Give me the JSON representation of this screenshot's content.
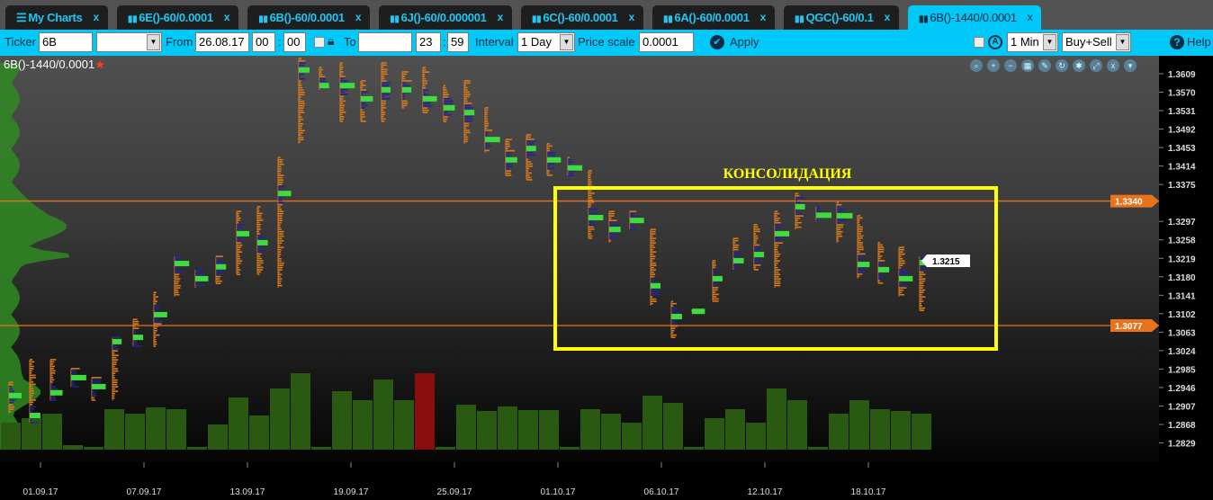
{
  "tabs": [
    {
      "label": "My Charts",
      "icon": "list-icon"
    },
    {
      "label": "6E()-60/0.0001",
      "icon": "bar-chart-icon"
    },
    {
      "label": "6B()-60/0.0001",
      "icon": "bar-chart-icon"
    },
    {
      "label": "6J()-60/0.000001",
      "icon": "bar-chart-icon"
    },
    {
      "label": "6C()-60/0.0001",
      "icon": "bar-chart-icon"
    },
    {
      "label": "6A()-60/0.0001",
      "icon": "bar-chart-icon"
    },
    {
      "label": "QGC()-60/0.1",
      "icon": "bar-chart-icon"
    },
    {
      "label": "6B()-1440/0.0001",
      "icon": "bar-chart-icon",
      "active": true
    }
  ],
  "tab_close": "x",
  "toolbar": {
    "ticker_label": "Ticker",
    "ticker_value": "6B",
    "ticker_select": "",
    "from_label": "From",
    "from_date": "26.08.17",
    "from_hour": "00",
    "from_min": "00",
    "to_label": "To",
    "to_date": "",
    "to_hour": "23",
    "to_min": "59",
    "colon": ":",
    "interval_label": "Interval",
    "interval_value": "1 Day",
    "price_scale_label": "Price scale",
    "price_scale_value": "0.0001",
    "apply_label": "Apply",
    "timeframe_value": "1 Min",
    "side_value": "Buy+Sell",
    "help_label": "Help"
  },
  "chart": {
    "title": "6B()-1440/0.0001",
    "annotation": "КОНСОЛИДАЦИЯ",
    "price_labels": [
      "1.3609",
      "1.3570",
      "1.3531",
      "1.3492",
      "1.3453",
      "1.3414",
      "1.3375",
      "1.3297",
      "1.3258",
      "1.3219",
      "1.3180",
      "1.3141",
      "1.3102",
      "1.3063",
      "1.3024",
      "1.2985",
      "1.2946",
      "1.2907",
      "1.2868",
      "1.2829"
    ],
    "level_high": "1.3340",
    "level_low": "1.3077",
    "last_price": "1.3215",
    "date_labels": [
      "01.09.17",
      "07.09.17",
      "13.09.17",
      "19.09.17",
      "25.09.17",
      "01.10.17",
      "06.10.17",
      "12.10.17",
      "18.10.17"
    ],
    "colors": {
      "level": "#e8731a",
      "box": "#ffff00",
      "profile": "#d87a1c",
      "poc": "#3fdc3f",
      "value_area": "#26268c",
      "volume": "#2a5a12",
      "volume_highlight": "#8b0e0e"
    },
    "bars": [
      [
        1.2957,
        1.2891,
        1.2929
      ],
      [
        1.3005,
        1.2872,
        1.2887
      ],
      [
        1.3005,
        1.2919,
        1.2935
      ],
      [
        1.2986,
        1.2948,
        1.2967
      ],
      [
        1.2967,
        1.2919,
        1.2948
      ],
      [
        1.3052,
        1.2919,
        1.3043
      ],
      [
        1.309,
        1.3033,
        1.3052
      ],
      [
        1.3147,
        1.3033,
        1.31
      ],
      [
        1.3223,
        1.3138,
        1.3208
      ],
      [
        1.3195,
        1.3157,
        1.3176
      ],
      [
        1.3223,
        1.3166,
        1.3201
      ],
      [
        1.3318,
        1.3185,
        1.3271
      ],
      [
        1.3328,
        1.3185,
        1.3252
      ],
      [
        1.3432,
        1.3157,
        1.3356
      ],
      [
        1.3641,
        1.3461,
        1.3617
      ],
      [
        1.3622,
        1.3575,
        1.3584
      ],
      [
        1.3632,
        1.3508,
        1.3584
      ],
      [
        1.3594,
        1.3508,
        1.3556
      ],
      [
        1.3632,
        1.3508,
        1.3575
      ],
      [
        1.3613,
        1.3537,
        1.3575
      ],
      [
        1.3622,
        1.3527,
        1.3556
      ],
      [
        1.3584,
        1.3508,
        1.3537
      ],
      [
        1.3594,
        1.3461,
        1.3527
      ],
      [
        1.3537,
        1.3442,
        1.347
      ],
      [
        1.347,
        1.3394,
        1.3427
      ],
      [
        1.348,
        1.3385,
        1.3451
      ],
      [
        1.3461,
        1.3394,
        1.3427
      ],
      [
        1.3432,
        1.3394,
        1.341
      ],
      [
        1.3404,
        1.3261,
        1.3305
      ],
      [
        1.3318,
        1.3252,
        1.328
      ],
      [
        1.3318,
        1.328,
        1.3299
      ],
      [
        1.328,
        1.3119,
        1.3161
      ],
      [
        1.3128,
        1.3052,
        1.3096
      ],
      [
        1.3111,
        1.3104,
        1.3107
      ],
      [
        1.3214,
        1.3128,
        1.3176
      ],
      [
        1.3261,
        1.3195,
        1.3214
      ],
      [
        1.329,
        1.3195,
        1.3227
      ],
      [
        1.3318,
        1.3157,
        1.3271
      ],
      [
        1.3356,
        1.328,
        1.3328
      ],
      [
        1.3328,
        1.3299,
        1.331
      ],
      [
        1.3337,
        1.3252,
        1.3309
      ],
      [
        1.3309,
        1.3176,
        1.3206
      ],
      [
        1.3252,
        1.3166,
        1.3195
      ],
      [
        1.3242,
        1.3138,
        1.3176
      ],
      [
        1.3223,
        1.3109,
        1.321
      ]
    ],
    "volumes": [
      30,
      35,
      40,
      5,
      3,
      45,
      40,
      47,
      45,
      3,
      28,
      58,
      38,
      68,
      85,
      3,
      65,
      55,
      78,
      55,
      85,
      3,
      50,
      43,
      48,
      44,
      44,
      3,
      45,
      40,
      30,
      60,
      52,
      3,
      35,
      45,
      30,
      68,
      55,
      3,
      40,
      55,
      45,
      43,
      40
    ],
    "highlight_volume_index": 20
  }
}
